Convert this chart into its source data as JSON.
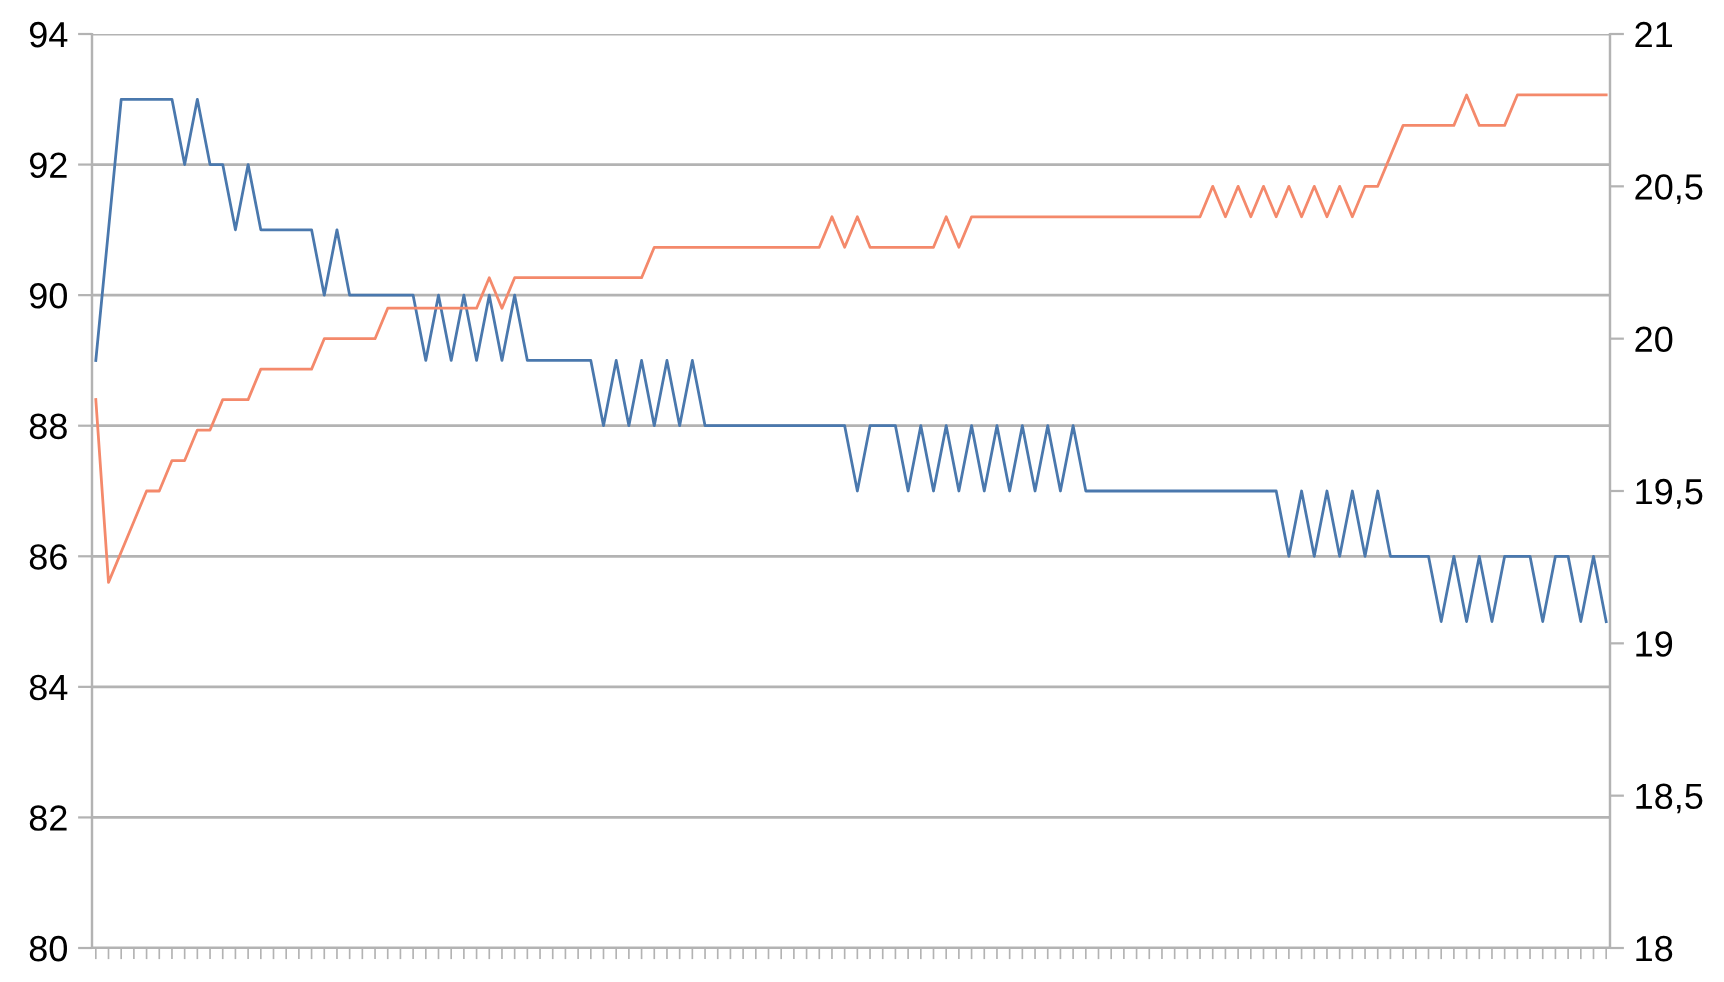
{
  "chart_data": {
    "type": "line",
    "categories": [
      null,
      null,
      null,
      null,
      null,
      null,
      null,
      null,
      null,
      null,
      null,
      null,
      null,
      null,
      null,
      null,
      null,
      null,
      null,
      null,
      null,
      null,
      null,
      null,
      null,
      null,
      null,
      null,
      null,
      null,
      null,
      null,
      null,
      null,
      null,
      null,
      null,
      null,
      null,
      null,
      null,
      null,
      null,
      null,
      null,
      null,
      null,
      null,
      null,
      null,
      null,
      null,
      null,
      null,
      null,
      null,
      null,
      null,
      null,
      null,
      null,
      null,
      null,
      null,
      null,
      null,
      null,
      null,
      null,
      null,
      null,
      null,
      null,
      null,
      null,
      null,
      null,
      null,
      null,
      null,
      null,
      null,
      null,
      null,
      null,
      null,
      null,
      null,
      null,
      null,
      null,
      null,
      null,
      null,
      null,
      null,
      null,
      null,
      null,
      null,
      null,
      null,
      null,
      null,
      null,
      null,
      null,
      null,
      null,
      null,
      null,
      null,
      null,
      null,
      null,
      null,
      null,
      null,
      null,
      null
    ],
    "series": [
      {
        "color": "#4a78ad",
        "values": [
          89,
          91,
          93,
          93,
          93,
          93,
          93,
          92,
          93,
          92,
          92,
          91,
          92,
          91,
          91,
          91,
          91,
          91,
          90,
          91,
          90,
          90,
          90,
          90,
          90,
          90,
          89,
          90,
          89,
          90,
          89,
          90,
          89,
          90,
          89,
          89,
          89,
          89,
          89,
          89,
          88,
          89,
          88,
          89,
          88,
          89,
          88,
          89,
          88,
          88,
          88,
          88,
          88,
          88,
          88,
          88,
          88,
          88,
          88,
          88,
          87,
          88,
          88,
          88,
          87,
          88,
          87,
          88,
          87,
          88,
          87,
          88,
          87,
          88,
          87,
          88,
          87,
          88,
          87,
          87,
          87,
          87,
          87,
          87,
          87,
          87,
          87,
          87,
          87,
          87,
          87,
          87,
          87,
          87,
          86,
          87,
          86,
          87,
          86,
          87,
          86,
          87,
          86,
          86,
          86,
          86,
          85,
          86,
          85,
          86,
          85,
          86,
          86,
          86,
          85,
          86,
          86,
          85,
          86,
          85
        ]
      },
      {
        "color": "#f4896b",
        "axis": "y2",
        "values": [
          19.8,
          19.2,
          19.3,
          19.4,
          19.5,
          19.5,
          19.6,
          19.6,
          19.7,
          19.7,
          19.8,
          19.8,
          19.8,
          19.9,
          19.9,
          19.9,
          19.9,
          19.9,
          20.0,
          20.0,
          20.0,
          20.0,
          20.0,
          20.1,
          20.1,
          20.1,
          20.1,
          20.1,
          20.1,
          20.1,
          20.1,
          20.2,
          20.1,
          20.2,
          20.2,
          20.2,
          20.2,
          20.2,
          20.2,
          20.2,
          20.2,
          20.2,
          20.2,
          20.2,
          20.3,
          20.3,
          20.3,
          20.3,
          20.3,
          20.3,
          20.3,
          20.3,
          20.3,
          20.3,
          20.3,
          20.3,
          20.3,
          20.3,
          20.4,
          20.3,
          20.4,
          20.3,
          20.3,
          20.3,
          20.3,
          20.3,
          20.3,
          20.4,
          20.3,
          20.4,
          20.4,
          20.4,
          20.4,
          20.4,
          20.4,
          20.4,
          20.4,
          20.4,
          20.4,
          20.4,
          20.4,
          20.4,
          20.4,
          20.4,
          20.4,
          20.4,
          20.4,
          20.4,
          20.5,
          20.4,
          20.5,
          20.4,
          20.5,
          20.4,
          20.5,
          20.4,
          20.5,
          20.4,
          20.5,
          20.4,
          20.5,
          20.5,
          20.6,
          20.7,
          20.7,
          20.7,
          20.7,
          20.7,
          20.8,
          20.7,
          20.7,
          20.7,
          20.8,
          20.8,
          20.8,
          20.8,
          20.8,
          20.8,
          20.8,
          20.8
        ]
      }
    ],
    "ylim": [
      80,
      94
    ],
    "yticks": [
      80,
      82,
      84,
      86,
      88,
      90,
      92,
      94
    ],
    "y2lim": [
      18,
      21
    ],
    "y2ticks": [
      18,
      {
        "value": 18.5,
        "label": "18,5"
      },
      19,
      {
        "value": 19.5,
        "label": "19,5"
      },
      20,
      {
        "value": 20.5,
        "label": "20,5"
      },
      21
    ],
    "grid": "y",
    "tick_labels": "y",
    "marker": "none",
    "line_style": "solid"
  }
}
